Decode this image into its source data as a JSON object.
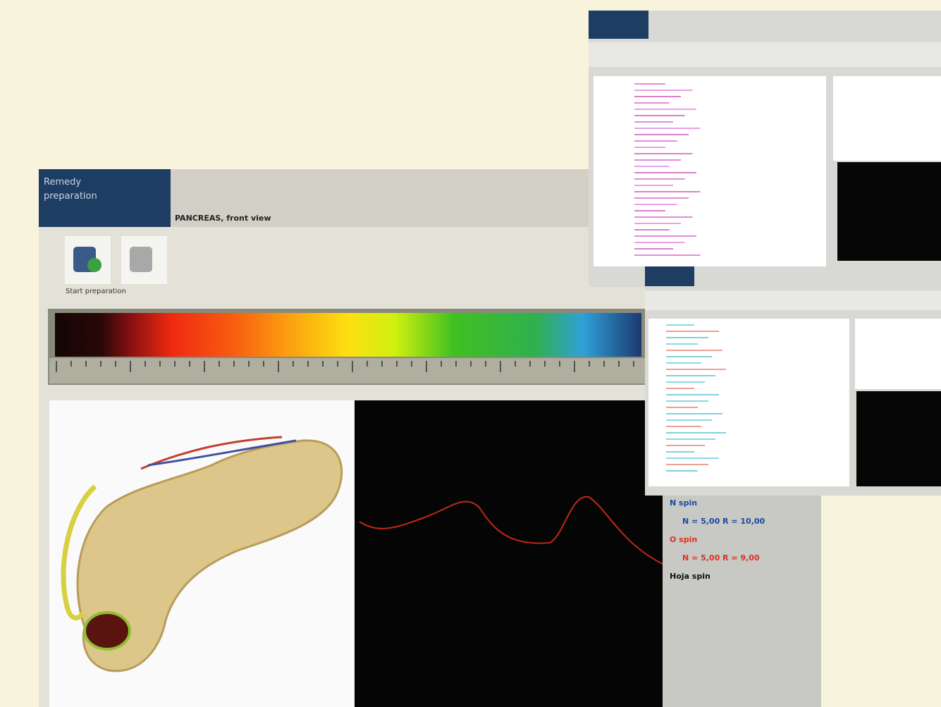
{
  "window": {
    "title": "Remedy preparation",
    "view_title": "PANCREAS, front view",
    "button_label": "Start preparation"
  },
  "info_panel": {
    "lines": [
      {
        "text": "N spin",
        "color": "#1a4aa0"
      },
      {
        "text": "N = 5,00   R = 10,00",
        "color": "#1a4aa0"
      },
      {
        "text": "O spin",
        "color": "#e03020"
      },
      {
        "text": "N = 5,00   R = 9,00",
        "color": "#e03020"
      },
      {
        "text": "Hoja spin",
        "color": "#111111"
      }
    ]
  }
}
